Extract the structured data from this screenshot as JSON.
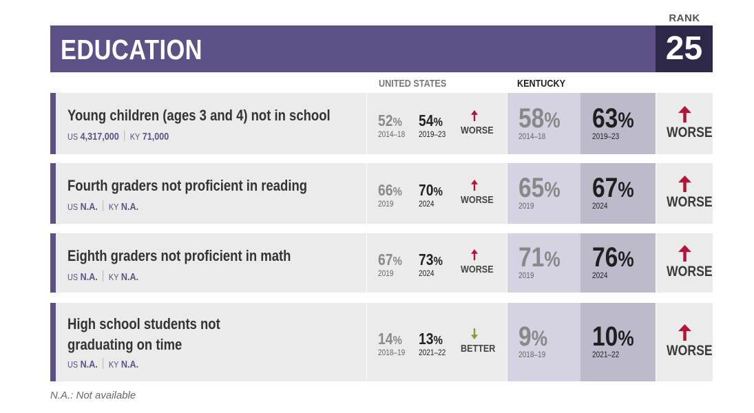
{
  "header": {
    "title": "EDUCATION",
    "rank_label": "RANK",
    "rank_value": "25"
  },
  "columns": {
    "us": "UNITED STATES",
    "ky": "KENTUCKY"
  },
  "rows": [
    {
      "title_lines": [
        "Young children (ages 3 and 4) not in school"
      ],
      "us_count_label": "US",
      "us_count": "4,317,000",
      "ky_count_label": "KY",
      "ky_count": "71,000",
      "us_old": "52",
      "us_old_year": "2014–18",
      "us_new": "54",
      "us_new_year": "2019–23",
      "us_trend": "WORSE",
      "ky_old": "58",
      "ky_old_year": "2014–18",
      "ky_new": "63",
      "ky_new_year": "2019–23",
      "ky_trend": "WORSE"
    },
    {
      "title_lines": [
        "Fourth graders not proficient in reading"
      ],
      "us_count_label": "US",
      "us_count": "N.A.",
      "ky_count_label": "KY",
      "ky_count": "N.A.",
      "us_old": "66",
      "us_old_year": "2019",
      "us_new": "70",
      "us_new_year": "2024",
      "us_trend": "WORSE",
      "ky_old": "65",
      "ky_old_year": "2019",
      "ky_new": "67",
      "ky_new_year": "2024",
      "ky_trend": "WORSE"
    },
    {
      "title_lines": [
        "Eighth graders not proficient in math"
      ],
      "us_count_label": "US",
      "us_count": "N.A.",
      "ky_count_label": "KY",
      "ky_count": "N.A.",
      "us_old": "67",
      "us_old_year": "2019",
      "us_new": "73",
      "us_new_year": "2024",
      "us_trend": "WORSE",
      "ky_old": "71",
      "ky_old_year": "2019",
      "ky_new": "76",
      "ky_new_year": "2024",
      "ky_trend": "WORSE"
    },
    {
      "title_lines": [
        "High school students not",
        "graduating on time"
      ],
      "us_count_label": "US",
      "us_count": "N.A.",
      "ky_count_label": "KY",
      "ky_count": "N.A.",
      "us_old": "14",
      "us_old_year": "2018–19",
      "us_new": "13",
      "us_new_year": "2021–22",
      "us_trend": "BETTER",
      "ky_old": "9",
      "ky_old_year": "2018–19",
      "ky_new": "10",
      "ky_new_year": "2021–22",
      "ky_trend": "WORSE"
    }
  ],
  "percent_sign": "%",
  "colors": {
    "brand": "#5d5187",
    "rank_bg": "#2d2748",
    "worse": "#b5123a",
    "better": "#8a9a2c"
  },
  "footnote": "N.A.: Not available"
}
